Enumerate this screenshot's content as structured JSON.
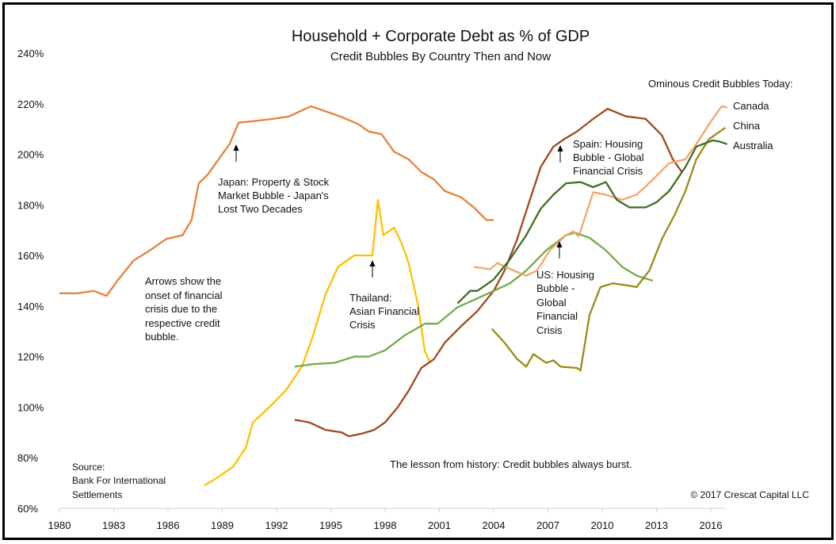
{
  "chart_data": {
    "type": "line",
    "title": "Household + Corporate Debt as % of GDP",
    "subtitle": "Credit Bubbles By Country Then and Now",
    "xlabel": "",
    "ylabel": "",
    "xlim": [
      1980,
      2017
    ],
    "ylim": [
      60,
      240
    ],
    "x_ticks": [
      "1980",
      "1983",
      "1986",
      "1989",
      "1992",
      "1995",
      "1998",
      "2001",
      "2004",
      "2007",
      "2010",
      "2013",
      "2016"
    ],
    "y_ticks": [
      "60%",
      "80%",
      "100%",
      "120%",
      "140%",
      "160%",
      "180%",
      "200%",
      "220%",
      "240%"
    ],
    "grid": false,
    "legend_title": "Ominous Credit Bubbles Today:",
    "legend_placement": "top-right",
    "series": [
      {
        "name": "Japan",
        "color": "#E8803A",
        "x": [
          1980,
          1981,
          1981.9,
          1982.6,
          1983.2,
          1984.1,
          1985,
          1985.9,
          1986.8,
          1987.3,
          1987.7,
          1988.2,
          1988.9,
          1989.4,
          1989.9,
          1990.6,
          1991.8,
          1992.7,
          1993.9,
          1994.7,
          1995.5,
          1996.5,
          1997.1,
          1997.8,
          1998.5,
          1999.3,
          2000,
          2000.7,
          2001.3,
          2002.2,
          2002.9,
          2003.6,
          2004
        ],
        "y": [
          145,
          145,
          146,
          144,
          150,
          158,
          162,
          166.5,
          168,
          174,
          188.5,
          192,
          199,
          204,
          212.5,
          213,
          214,
          215,
          219,
          217,
          215,
          212,
          209,
          208,
          201,
          198,
          193,
          190,
          185.5,
          183,
          179,
          174,
          174
        ]
      },
      {
        "name": "Thailand",
        "color": "#FFC000",
        "x": [
          1988,
          1988.7,
          1989.6,
          1990.3,
          1990.7,
          1991.6,
          1992.5,
          1993.4,
          1994,
          1994.7,
          1995.4,
          1996.3,
          1997.3,
          1997.6,
          1997.9,
          1998.5,
          1998.9,
          1999.3,
          1999.8,
          2000.2,
          2000.5
        ],
        "y": [
          69,
          72,
          76.5,
          84,
          94,
          100,
          106.5,
          116,
          128,
          144.5,
          155.5,
          160,
          160,
          182,
          168,
          171,
          165,
          157,
          141,
          122,
          117.5
        ]
      },
      {
        "name": "Spain",
        "color": "#A0491C",
        "x": [
          1993,
          1993.8,
          1994.7,
          1995.6,
          1996,
          1996.7,
          1997.4,
          1998,
          1998.7,
          1999.3,
          2000,
          2000.7,
          2001.3,
          2002.2,
          2003.1,
          2004,
          2004.6,
          2005.3,
          2006,
          2006.6,
          2007.3,
          2007.9,
          2008.6,
          2009.5,
          2010.3,
          2011.3,
          2012.4,
          2013.3,
          2013.9,
          2014.4
        ],
        "y": [
          95,
          94,
          91,
          90,
          88.5,
          89.5,
          91,
          94,
          100,
          106.5,
          115.5,
          119,
          125.5,
          132,
          138,
          146,
          154,
          166.5,
          182,
          195,
          203,
          206,
          209,
          214,
          218,
          215,
          214,
          207.5,
          198,
          193
        ]
      },
      {
        "name": "US",
        "color": "#70AD47",
        "x": [
          1993,
          1994,
          1995.2,
          1996.3,
          1997.1,
          1998,
          1999.1,
          2000.2,
          2000.9,
          2002,
          2003.1,
          2004,
          2004.9,
          2005.8,
          2006.9,
          2008,
          2008.5,
          2009.3,
          2010.2,
          2011.1,
          2011.9,
          2012.8
        ],
        "y": [
          116,
          117,
          117.5,
          120,
          120,
          122.5,
          128.5,
          133,
          133,
          139.5,
          143,
          146,
          149,
          154,
          162,
          168,
          169,
          167,
          162,
          155.5,
          152,
          150
        ]
      },
      {
        "name": "Canada",
        "color": "#F4A46A",
        "x": [
          2002.9,
          2003.8,
          2004.2,
          2005.1,
          2005.8,
          2006.4,
          2007.1,
          2008,
          2008.4,
          2008.7,
          2009.5,
          2010.2,
          2011.1,
          2011.9,
          2012.8,
          2013.7,
          2014.6,
          2015.2,
          2016.1,
          2016.6,
          2016.9
        ],
        "y": [
          155.5,
          154.5,
          157,
          154,
          152,
          154,
          162,
          168,
          169.5,
          167.5,
          185,
          184,
          182,
          184,
          190,
          196.5,
          198,
          204,
          214,
          219,
          218.5
        ]
      },
      {
        "name": "China",
        "color": "#9C8A14",
        "x": [
          2003.9,
          2004.6,
          2005.3,
          2005.8,
          2006.2,
          2006.9,
          2007.3,
          2007.7,
          2008.6,
          2008.8,
          2009.3,
          2009.9,
          2010.6,
          2011.5,
          2011.9,
          2012.6,
          2013.3,
          2014,
          2014.6,
          2015.2,
          2015.9,
          2016.8
        ],
        "y": [
          131,
          125.5,
          119,
          116,
          121,
          117.5,
          118.5,
          116,
          115.5,
          114.5,
          136.5,
          147.5,
          149,
          148,
          147.5,
          154,
          166.5,
          176,
          185.5,
          198,
          206,
          210.5
        ]
      },
      {
        "name": "Australia",
        "color": "#3F6E22",
        "x": [
          2002,
          2002.7,
          2003.1,
          2004,
          2004.9,
          2005.8,
          2006.6,
          2007.3,
          2008,
          2008.8,
          2009.5,
          2010.2,
          2010.8,
          2011.5,
          2012.4,
          2013,
          2013.7,
          2014.6,
          2015.2,
          2016.1,
          2016.5,
          2016.9
        ],
        "y": [
          141,
          146,
          146,
          150.5,
          158.5,
          168,
          178.5,
          184,
          188.5,
          189,
          187,
          189,
          182,
          179,
          179,
          181,
          185.5,
          195,
          203,
          205.5,
          205,
          204
        ]
      }
    ],
    "legend_labels": [
      "Canada",
      "China",
      "Australia"
    ],
    "annotations": {
      "japan": [
        "Japan: Property & Stock",
        "Market Bubble - Japan's",
        "Lost Two Decades"
      ],
      "thailand": [
        "Thailand:",
        "Asian Financial",
        "Crisis"
      ],
      "spain": [
        "Spain: Housing",
        "Bubble - Global",
        "Financial Crisis"
      ],
      "us": [
        "US: Housing",
        "Bubble -",
        "Global",
        "Financial",
        "Crisis"
      ],
      "arrows_note": [
        "Arrows show the",
        "onset of financial",
        "crisis due to the",
        "respective credit",
        "bubble."
      ],
      "source": [
        "Source:",
        "Bank For International",
        "Settlements"
      ],
      "lesson": "The lesson from history: Credit bubbles always burst.",
      "copyright": "© 2017 Crescat Capital LLC"
    }
  }
}
